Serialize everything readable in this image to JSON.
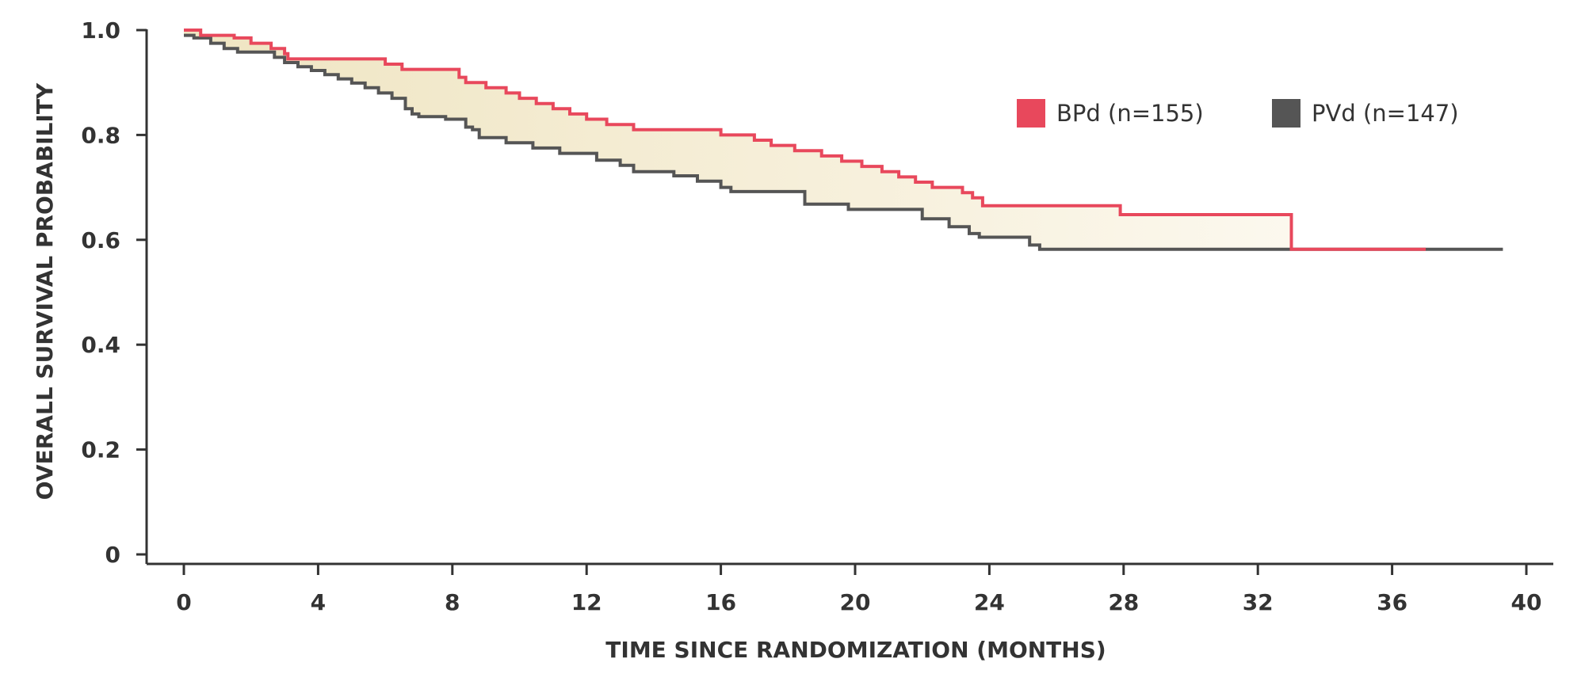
{
  "chart_data": {
    "type": "line",
    "subtype": "kaplan-meier step curve",
    "title": "",
    "xlabel": "TIME SINCE RANDOMIZATION (MONTHS)",
    "ylabel": "OVERALL SURVIVAL PROBABILITY",
    "xlim": [
      0,
      40
    ],
    "ylim": [
      0,
      1.0
    ],
    "x_ticks": [
      0,
      4,
      8,
      12,
      16,
      20,
      24,
      28,
      32,
      36,
      40
    ],
    "x_tick_labels": [
      "0",
      "4",
      "8",
      "12",
      "16",
      "20",
      "24",
      "28",
      "32",
      "36",
      "40"
    ],
    "y_ticks": [
      0,
      0.2,
      0.4,
      0.6,
      0.8,
      1.0
    ],
    "y_tick_labels": [
      "0",
      "0.2",
      "0.4",
      "0.6",
      "0.8",
      "1.0"
    ],
    "grid": false,
    "legend_position": "top-right",
    "shaded_region_between_curves": true,
    "series": [
      {
        "name": "BPd (n=155)",
        "color": "#e8485c",
        "x": [
          0,
          0.5,
          1.5,
          2.0,
          2.6,
          3.0,
          3.1,
          6.0,
          6.5,
          8.2,
          8.4,
          9.0,
          9.6,
          10.0,
          10.5,
          11.0,
          11.5,
          12.0,
          12.6,
          13.4,
          16.0,
          17.0,
          17.5,
          18.2,
          19.0,
          19.6,
          20.2,
          20.8,
          21.3,
          21.8,
          22.3,
          23.2,
          23.5,
          23.8,
          27.9,
          33.0,
          37.0
        ],
        "y": [
          1.0,
          0.99,
          0.985,
          0.975,
          0.965,
          0.955,
          0.945,
          0.935,
          0.925,
          0.91,
          0.9,
          0.89,
          0.88,
          0.87,
          0.86,
          0.85,
          0.84,
          0.83,
          0.82,
          0.81,
          0.8,
          0.79,
          0.78,
          0.77,
          0.76,
          0.75,
          0.74,
          0.73,
          0.72,
          0.71,
          0.7,
          0.69,
          0.68,
          0.665,
          0.648,
          0.582,
          0.582
        ]
      },
      {
        "name": "PVd (n=147)",
        "color": "#555555",
        "x": [
          0,
          0.3,
          0.8,
          1.2,
          1.6,
          2.7,
          3.0,
          3.4,
          3.8,
          4.2,
          4.6,
          5.0,
          5.4,
          5.8,
          6.2,
          6.6,
          6.8,
          7.0,
          7.8,
          8.4,
          8.6,
          8.8,
          9.6,
          10.4,
          11.2,
          12.3,
          13.0,
          13.4,
          14.6,
          15.3,
          16.0,
          16.3,
          18.5,
          19.8,
          22.0,
          22.8,
          23.4,
          23.7,
          25.2,
          25.5,
          39.3
        ],
        "y": [
          0.99,
          0.985,
          0.975,
          0.965,
          0.958,
          0.948,
          0.938,
          0.93,
          0.923,
          0.915,
          0.907,
          0.899,
          0.89,
          0.88,
          0.87,
          0.85,
          0.84,
          0.835,
          0.83,
          0.815,
          0.81,
          0.795,
          0.785,
          0.775,
          0.765,
          0.752,
          0.742,
          0.73,
          0.722,
          0.712,
          0.7,
          0.692,
          0.668,
          0.658,
          0.64,
          0.625,
          0.612,
          0.605,
          0.59,
          0.582,
          0.582
        ]
      }
    ]
  }
}
